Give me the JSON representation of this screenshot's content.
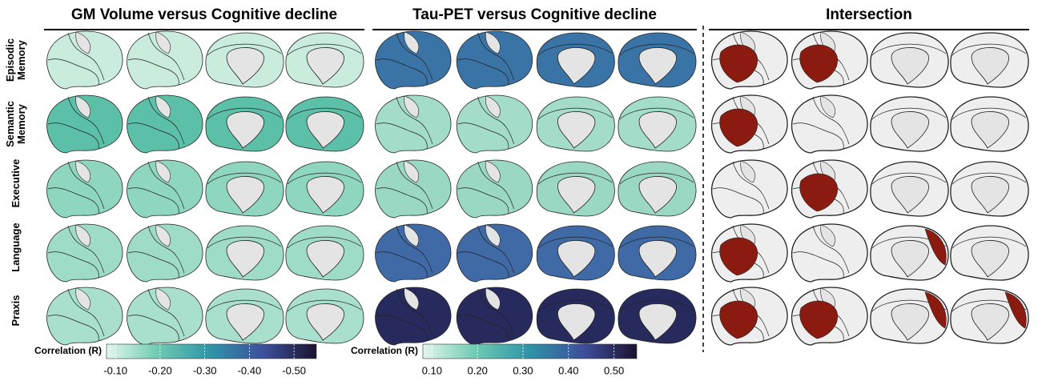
{
  "panels": [
    {
      "title": "GM Volume versus Cognitive decline"
    },
    {
      "title": "Tau-PET versus Cognitive decline"
    },
    {
      "title": "Intersection"
    }
  ],
  "rows": [
    "Episodic Memory",
    "Semantic Memory",
    "Executive",
    "Language",
    "Praxis"
  ],
  "colorbars": [
    {
      "label": "Correlation (R)",
      "lim": [
        -0.08,
        -0.55
      ],
      "colors": [
        "#e3f6ec",
        "#6ccab2",
        "#2f93a8",
        "#3d4f9c",
        "#1b1330"
      ],
      "ticks": [
        {
          "value": -0.1,
          "label": "-0.10"
        },
        {
          "value": -0.2,
          "label": "-0.20"
        },
        {
          "value": -0.3,
          "label": "-0.30"
        },
        {
          "value": -0.4,
          "label": "-0.40"
        },
        {
          "value": -0.5,
          "label": "-0.50"
        }
      ]
    },
    {
      "label": "Correlation (R)",
      "lim": [
        0.08,
        0.55
      ],
      "colors": [
        "#e3f6ec",
        "#6ccab2",
        "#2f93a8",
        "#3d4f9c",
        "#1b1330"
      ],
      "ticks": [
        {
          "value": 0.1,
          "label": "0.10"
        },
        {
          "value": 0.2,
          "label": "0.20"
        },
        {
          "value": 0.3,
          "label": "0.30"
        },
        {
          "value": 0.4,
          "label": "0.40"
        },
        {
          "value": 0.5,
          "label": "0.50"
        }
      ]
    }
  ]
}
